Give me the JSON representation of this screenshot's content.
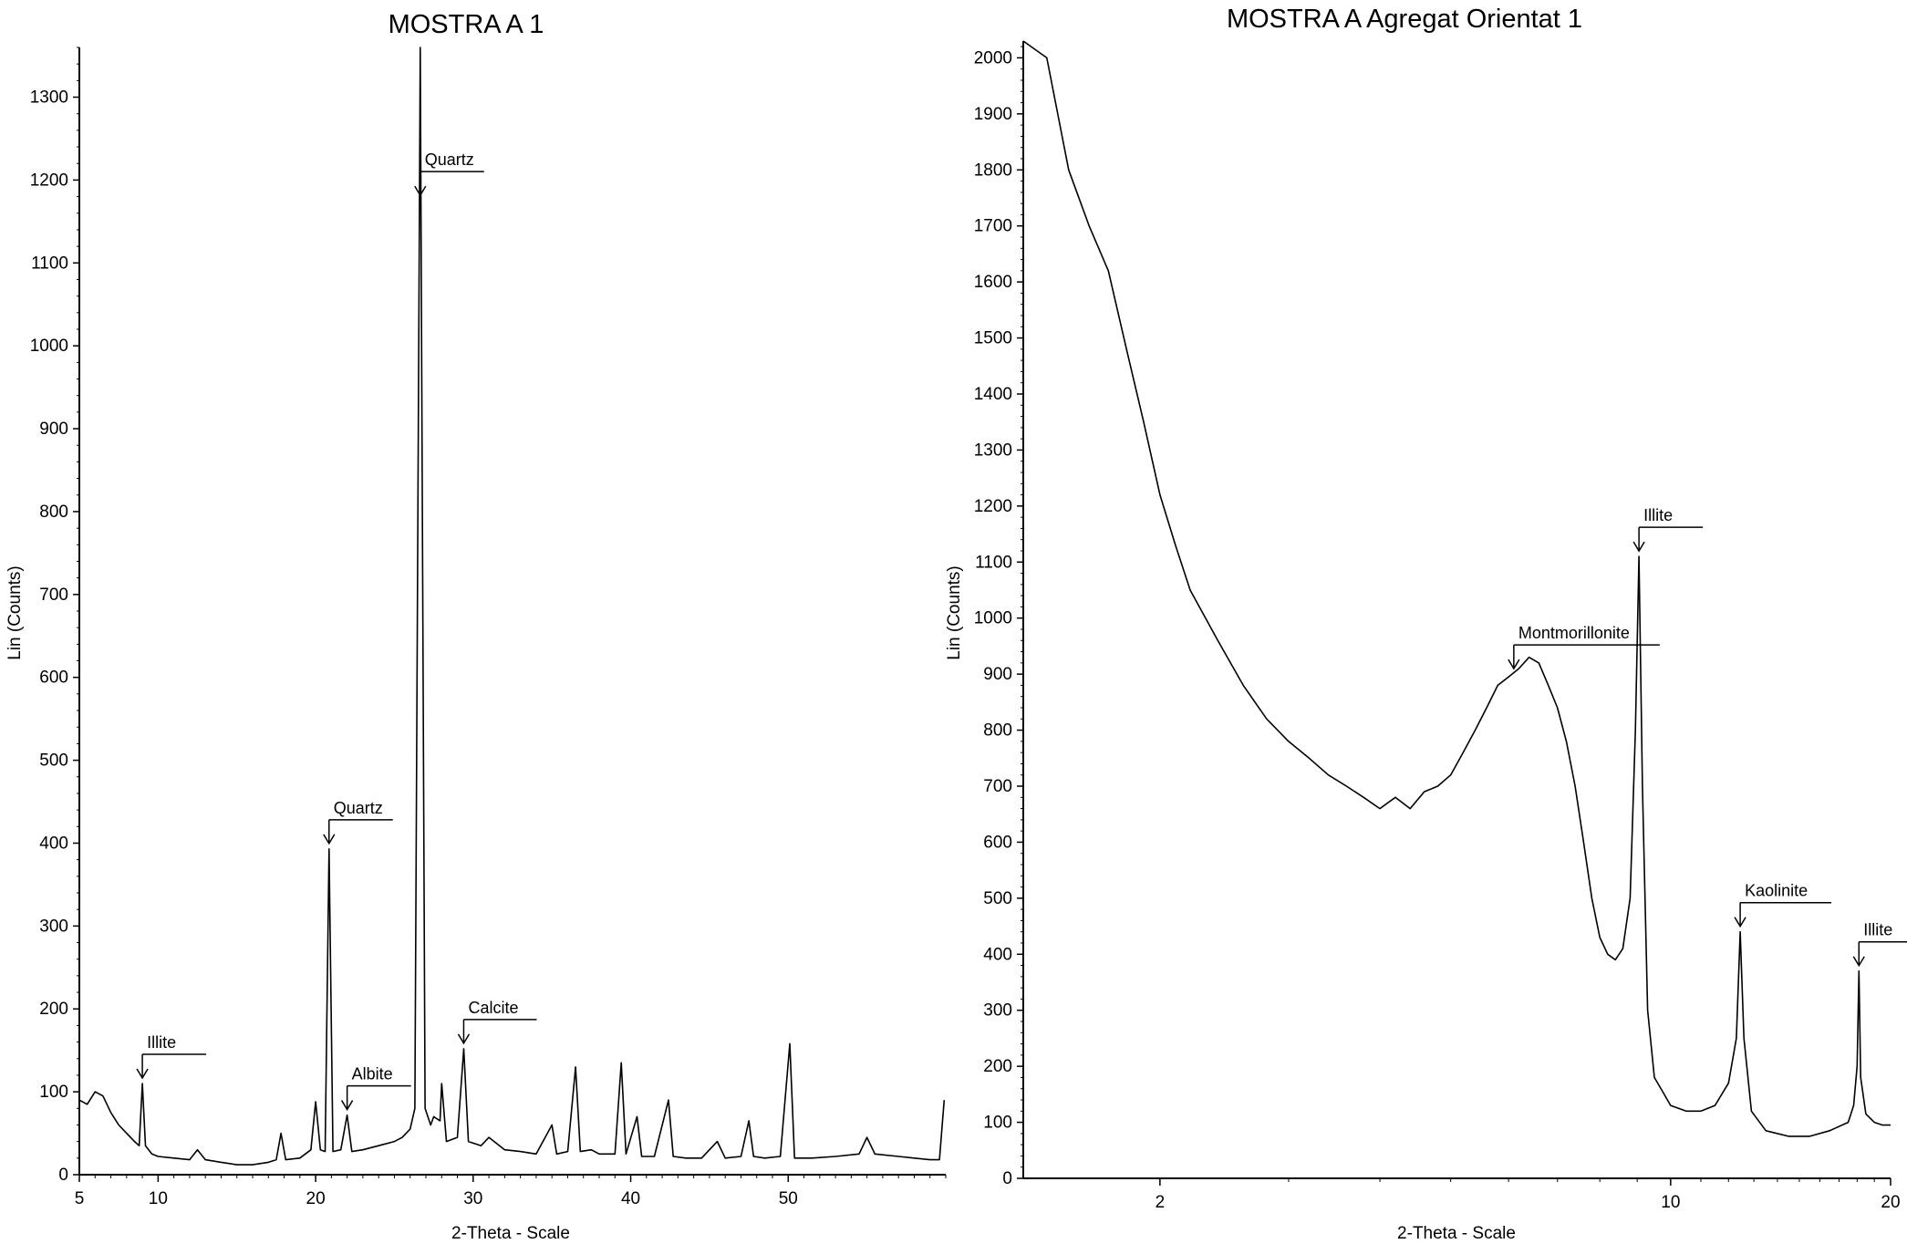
{
  "chart_data": [
    {
      "type": "line",
      "title": "MOSTRA A 1",
      "xlabel": "2-Theta - Scale",
      "ylabel": "Lin (Counts)",
      "xlim": [
        5,
        60
      ],
      "ylim": [
        0,
        1360
      ],
      "x_ticks": [
        5,
        10,
        20,
        30,
        40,
        50
      ],
      "y_ticks": [
        0,
        100,
        200,
        300,
        400,
        500,
        600,
        700,
        800,
        900,
        1000,
        1100,
        1200,
        1300
      ],
      "grid": false,
      "series": [
        {
          "points": [
            [
              5.0,
              90
            ],
            [
              5.5,
              85
            ],
            [
              6.0,
              100
            ],
            [
              6.5,
              95
            ],
            [
              7.0,
              75
            ],
            [
              7.5,
              60
            ],
            [
              8.0,
              50
            ],
            [
              8.5,
              40
            ],
            [
              8.8,
              35
            ],
            [
              9.0,
              110
            ],
            [
              9.2,
              35
            ],
            [
              9.6,
              25
            ],
            [
              10.0,
              22
            ],
            [
              11.0,
              20
            ],
            [
              12.0,
              18
            ],
            [
              12.5,
              30
            ],
            [
              13.0,
              18
            ],
            [
              14.0,
              15
            ],
            [
              15.0,
              12
            ],
            [
              16.0,
              12
            ],
            [
              17.0,
              15
            ],
            [
              17.5,
              18
            ],
            [
              17.8,
              50
            ],
            [
              18.1,
              18
            ],
            [
              19.0,
              20
            ],
            [
              19.7,
              30
            ],
            [
              20.0,
              88
            ],
            [
              20.3,
              30
            ],
            [
              20.6,
              28
            ],
            [
              20.85,
              393
            ],
            [
              21.1,
              28
            ],
            [
              21.6,
              30
            ],
            [
              22.0,
              72
            ],
            [
              22.3,
              28
            ],
            [
              23.0,
              30
            ],
            [
              24.0,
              35
            ],
            [
              25.0,
              40
            ],
            [
              25.5,
              45
            ],
            [
              26.0,
              55
            ],
            [
              26.3,
              80
            ],
            [
              26.64,
              1360
            ],
            [
              26.95,
              80
            ],
            [
              27.3,
              60
            ],
            [
              27.5,
              70
            ],
            [
              27.9,
              65
            ],
            [
              28.0,
              110
            ],
            [
              28.3,
              40
            ],
            [
              29.0,
              45
            ],
            [
              29.4,
              152
            ],
            [
              29.7,
              40
            ],
            [
              30.5,
              35
            ],
            [
              31.0,
              45
            ],
            [
              32.0,
              30
            ],
            [
              33.0,
              28
            ],
            [
              34.0,
              25
            ],
            [
              35.0,
              60
            ],
            [
              35.3,
              25
            ],
            [
              36.0,
              28
            ],
            [
              36.5,
              130
            ],
            [
              36.8,
              28
            ],
            [
              37.5,
              30
            ],
            [
              38.0,
              25
            ],
            [
              39.0,
              25
            ],
            [
              39.4,
              135
            ],
            [
              39.7,
              25
            ],
            [
              40.4,
              70
            ],
            [
              40.7,
              22
            ],
            [
              41.5,
              22
            ],
            [
              42.4,
              90
            ],
            [
              42.7,
              22
            ],
            [
              43.5,
              20
            ],
            [
              44.5,
              20
            ],
            [
              45.5,
              40
            ],
            [
              46.0,
              20
            ],
            [
              47.0,
              22
            ],
            [
              47.5,
              65
            ],
            [
              47.8,
              22
            ],
            [
              48.5,
              20
            ],
            [
              49.5,
              22
            ],
            [
              50.1,
              158
            ],
            [
              50.4,
              20
            ],
            [
              51.5,
              20
            ],
            [
              53.0,
              22
            ],
            [
              54.5,
              25
            ],
            [
              55.0,
              45
            ],
            [
              55.5,
              25
            ],
            [
              57.0,
              22
            ],
            [
              58.0,
              20
            ],
            [
              59.0,
              18
            ],
            [
              59.6,
              18
            ],
            [
              59.9,
              90
            ]
          ]
        }
      ],
      "annotations": [
        {
          "label": "Illite",
          "x": 9.0,
          "y": 110
        },
        {
          "label": "Quartz",
          "x": 20.85,
          "y": 393
        },
        {
          "label": "Albite",
          "x": 22.0,
          "y": 72
        },
        {
          "label": "Quartz",
          "x": 26.64,
          "y": 1175
        },
        {
          "label": "Calcite",
          "x": 29.4,
          "y": 152
        }
      ]
    },
    {
      "type": "line",
      "title": "MOSTRA A Agregat Orientat 1",
      "xlabel": "2-Theta - Scale",
      "ylabel": "Lin (Counts)",
      "xlim": [
        1.3,
        20
      ],
      "ylim": [
        0,
        2030
      ],
      "x_ticks": [
        2,
        10,
        20
      ],
      "y_ticks": [
        0,
        100,
        200,
        300,
        400,
        500,
        600,
        700,
        800,
        900,
        1000,
        1100,
        1200,
        1300,
        1400,
        1500,
        1600,
        1700,
        1800,
        1900,
        2000
      ],
      "grid": false,
      "series": [
        {
          "points": [
            [
              1.3,
              2030
            ],
            [
              1.4,
              2000
            ],
            [
              1.5,
              1800
            ],
            [
              1.6,
              1700
            ],
            [
              1.7,
              1620
            ],
            [
              1.8,
              1480
            ],
            [
              1.9,
              1350
            ],
            [
              2.0,
              1220
            ],
            [
              2.1,
              1130
            ],
            [
              2.2,
              1050
            ],
            [
              2.4,
              960
            ],
            [
              2.6,
              880
            ],
            [
              2.8,
              820
            ],
            [
              3.0,
              780
            ],
            [
              3.2,
              750
            ],
            [
              3.4,
              720
            ],
            [
              3.6,
              700
            ],
            [
              3.8,
              680
            ],
            [
              4.0,
              660
            ],
            [
              4.2,
              680
            ],
            [
              4.4,
              660
            ],
            [
              4.6,
              690
            ],
            [
              4.8,
              700
            ],
            [
              5.0,
              720
            ],
            [
              5.2,
              760
            ],
            [
              5.4,
              800
            ],
            [
              5.6,
              840
            ],
            [
              5.8,
              880
            ],
            [
              6.0,
              895
            ],
            [
              6.2,
              910
            ],
            [
              6.4,
              930
            ],
            [
              6.6,
              920
            ],
            [
              6.8,
              880
            ],
            [
              7.0,
              840
            ],
            [
              7.2,
              780
            ],
            [
              7.4,
              700
            ],
            [
              7.6,
              600
            ],
            [
              7.8,
              500
            ],
            [
              8.0,
              430
            ],
            [
              8.2,
              400
            ],
            [
              8.4,
              390
            ],
            [
              8.6,
              410
            ],
            [
              8.8,
              500
            ],
            [
              8.95,
              800
            ],
            [
              9.05,
              1110
            ],
            [
              9.15,
              700
            ],
            [
              9.3,
              300
            ],
            [
              9.5,
              180
            ],
            [
              9.8,
              150
            ],
            [
              10.0,
              130
            ],
            [
              10.5,
              120
            ],
            [
              11.0,
              120
            ],
            [
              11.5,
              130
            ],
            [
              12.0,
              170
            ],
            [
              12.3,
              250
            ],
            [
              12.45,
              440
            ],
            [
              12.6,
              250
            ],
            [
              12.9,
              120
            ],
            [
              13.5,
              85
            ],
            [
              14.5,
              75
            ],
            [
              15.5,
              75
            ],
            [
              16.5,
              85
            ],
            [
              17.5,
              100
            ],
            [
              17.8,
              130
            ],
            [
              18.0,
              200
            ],
            [
              18.1,
              370
            ],
            [
              18.2,
              180
            ],
            [
              18.5,
              115
            ],
            [
              19.0,
              100
            ],
            [
              19.5,
              95
            ],
            [
              20.0,
              95
            ]
          ]
        }
      ],
      "annotations": [
        {
          "label": "Montmorillonite",
          "x": 6.1,
          "y": 900
        },
        {
          "label": "Illite",
          "x": 9.05,
          "y": 1110
        },
        {
          "label": "Kaolinite",
          "x": 12.45,
          "y": 440
        },
        {
          "label": "Illite",
          "x": 18.1,
          "y": 370
        }
      ]
    }
  ]
}
